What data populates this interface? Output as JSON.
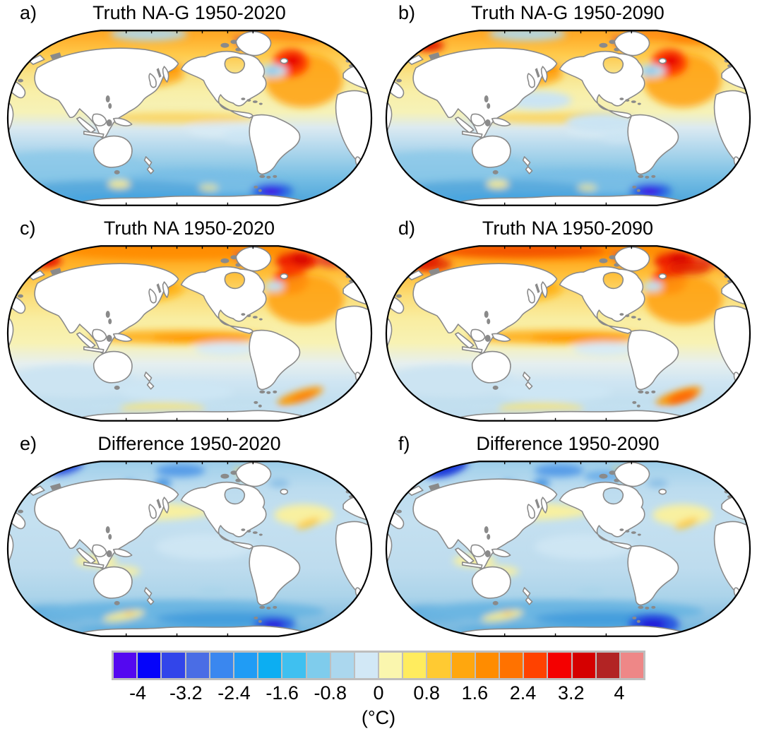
{
  "figure": {
    "panels": [
      {
        "label": "a)",
        "title": "Truth NA-G 1950-2020"
      },
      {
        "label": "b)",
        "title": "Truth NA-G 1950-2090"
      },
      {
        "label": "c)",
        "title": "Truth NA 1950-2020"
      },
      {
        "label": "d)",
        "title": "Truth NA 1950-2090"
      },
      {
        "label": "e)",
        "title": "Difference 1950-2020"
      },
      {
        "label": "f)",
        "title": "Difference 1950-2090"
      }
    ],
    "colorbar": {
      "unit_label": "(°C)",
      "tick_labels": [
        "-4",
        "-3.2",
        "-2.4",
        "-1.6",
        "-0.8",
        "0",
        "0.8",
        "1.6",
        "2.4",
        "3.2",
        "4"
      ],
      "contour_interval": 0.4,
      "frame_color": "#bebebe",
      "segment_colors": [
        "#5408F0",
        "#0504FA",
        "#3245EA",
        "#4A6DE5",
        "#3A87EF",
        "#209CF5",
        "#0CAEF2",
        "#3FC0F0",
        "#7FCCEC",
        "#ABD7EE",
        "#D2E8F6",
        "#FAF6AE",
        "#FFEC5E",
        "#FFCA32",
        "#FFA70E",
        "#FF8C00",
        "#FF7200",
        "#FF4200",
        "#F40000",
        "#D50000",
        "#B22424",
        "#EE8787"
      ]
    }
  },
  "chart_data": {
    "type": "heatmap",
    "subtype": "global_map_contour_grid_2x3",
    "unit": "°C",
    "projection": "Robinson-style global maps, Pacific-centered, white land with gray coastlines",
    "colorbar": {
      "ticks": [
        -4,
        -3.2,
        -2.4,
        -1.6,
        -0.8,
        0,
        0.8,
        1.6,
        2.4,
        3.2,
        4
      ],
      "contour_interval": 0.4,
      "range_exceeds_ends": true,
      "colors": [
        "#5408F0",
        "#0504FA",
        "#3245EA",
        "#4A6DE5",
        "#3A87EF",
        "#209CF5",
        "#0CAEF2",
        "#3FC0F0",
        "#7FCCEC",
        "#ABD7EE",
        "#D2E8F6",
        "#FAF6AE",
        "#FFEC5E",
        "#FFCA32",
        "#FFA70E",
        "#FF8C00",
        "#FF7200",
        "#FF4200",
        "#F40000",
        "#D50000",
        "#B22424",
        "#EE8787"
      ]
    },
    "panels": [
      {
        "label": "a)",
        "title": "Truth NA-G 1950-2020",
        "summary": "Northern oceans warm 0.8-2.4; subpolar North Atlantic maximum >3.2 with small cool spot south of Greenland; pale-yellow tropics ~0-0.8; Southern Ocean cooling -0.8 to -2.4 with minimum < -4 near Drake Passage/Scotia Sea."
      },
      {
        "label": "b)",
        "title": "Truth NA-G 1950-2090",
        "summary": "Similar to a with red patch in Arctic near Kara Sea, larger pale-blue central/eastern Pacific patches, strong North Atlantic warming maximum, deep-blue Southern Ocean minimum < -4."
      },
      {
        "label": "c)",
        "title": "Truth NA 1950-2020",
        "summary": "Strong orange-red Arctic rim warming 2.4 to >4; North Atlantic hotspot >3.2; warm equatorial Pacific band 1.2-2; mostly weak Southern Ocean anomalies with light-blue patches; warm streak ~2-2.8 in South Atlantic sector."
      },
      {
        "label": "d)",
        "title": "Truth NA 1950-2090",
        "summary": "Like c but with a broader, redder Arctic warming band and stronger South Atlantic warm streak."
      },
      {
        "label": "e)",
        "title": "Difference 1950-2020",
        "summary": "Mostly -0.4 to -1.2 everywhere; +0.4-0.8 yellow bands in North Pacific, near Indonesia and northwest Atlantic; strong negatives < -4 in Atlantic sector of Southern Ocean and -2 to -3 in Arctic north of Siberia."
      },
      {
        "label": "f)",
        "title": "Difference 1950-2090",
        "summary": "Like e with stronger dark-blue Arctic anomaly north of Siberia and a larger deep-blue minimum < -4 in the Atlantic sector of the Southern Ocean."
      }
    ]
  }
}
